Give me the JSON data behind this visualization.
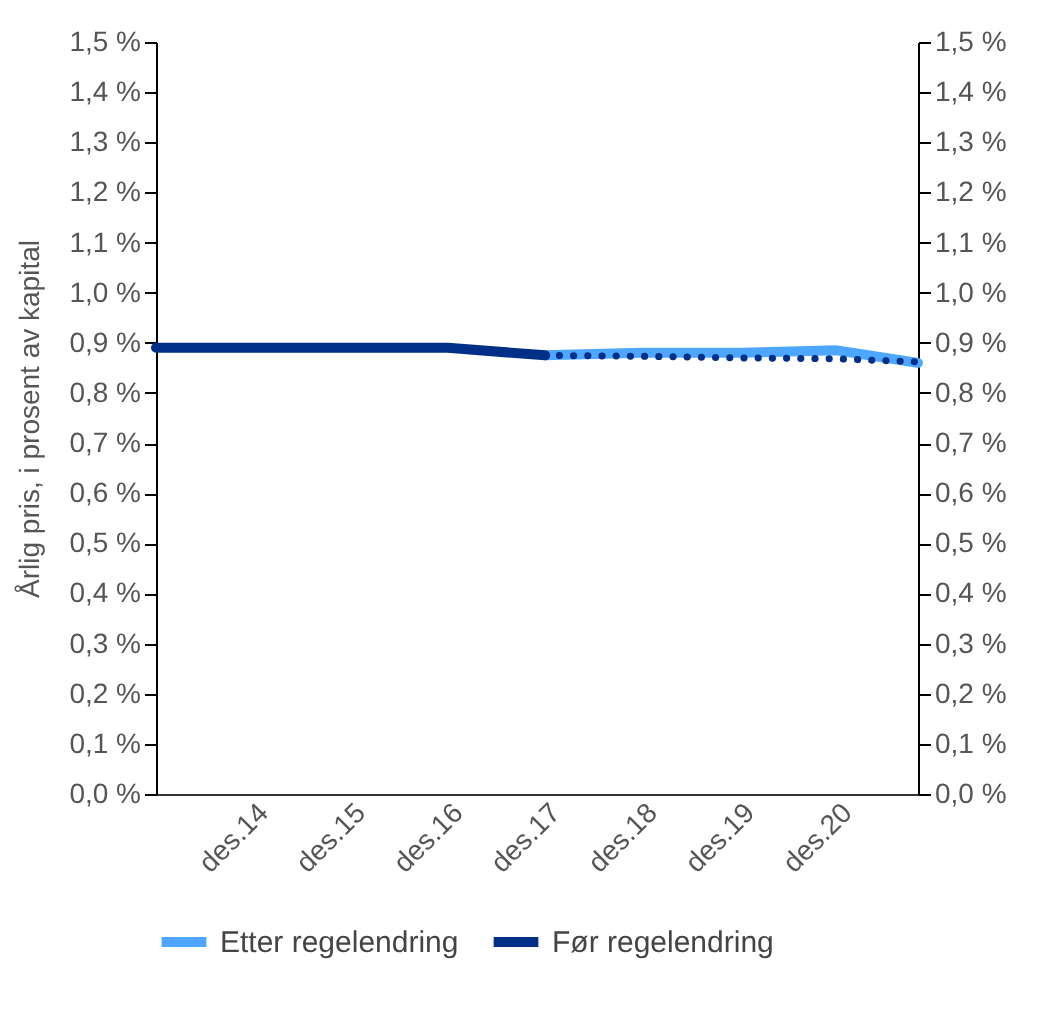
{
  "chart_data": {
    "type": "line",
    "ylabel": "Årlig pris, i prosent av kapital",
    "xlim": [
      "2013-12",
      "2021-10"
    ],
    "xticks": [
      {
        "value": "2014-12",
        "label": "des.14"
      },
      {
        "value": "2015-12",
        "label": "des.15"
      },
      {
        "value": "2016-12",
        "label": "des.16"
      },
      {
        "value": "2017-12",
        "label": "des.17"
      },
      {
        "value": "2018-12",
        "label": "des.18"
      },
      {
        "value": "2019-12",
        "label": "des.19"
      },
      {
        "value": "2020-12",
        "label": "des.20"
      }
    ],
    "ylim": [
      0,
      1.5
    ],
    "yticks": [
      {
        "value": 0,
        "label": "0,0 %"
      },
      {
        "value": 0.1,
        "label": "0,1 %"
      },
      {
        "value": 0.2,
        "label": "0,2 %"
      },
      {
        "value": 0.3,
        "label": "0,3 %"
      },
      {
        "value": 0.4,
        "label": "0,4 %"
      },
      {
        "value": 0.5,
        "label": "0,5 %"
      },
      {
        "value": 0.6,
        "label": "0,6 %"
      },
      {
        "value": 0.7,
        "label": "0,7 %"
      },
      {
        "value": 0.8,
        "label": "0,8 %"
      },
      {
        "value": 0.9,
        "label": "0,9 %"
      },
      {
        "value": 1.0,
        "label": "1,0 %"
      },
      {
        "value": 1.1,
        "label": "1,1 %"
      },
      {
        "value": 1.2,
        "label": "1,2 %"
      },
      {
        "value": 1.3,
        "label": "1,3 %"
      },
      {
        "value": 1.4,
        "label": "1,4 %"
      },
      {
        "value": 1.5,
        "label": "1,5 %"
      }
    ],
    "y2lim": [
      0,
      1.5
    ],
    "y2ticks": [
      {
        "value": 0,
        "label": "0,0 %"
      },
      {
        "value": 0.1,
        "label": "0,1 %"
      },
      {
        "value": 0.2,
        "label": "0,2 %"
      },
      {
        "value": 0.3,
        "label": "0,3 %"
      },
      {
        "value": 0.4,
        "label": "0,4 %"
      },
      {
        "value": 0.5,
        "label": "0,5 %"
      },
      {
        "value": 0.6,
        "label": "0,6 %"
      },
      {
        "value": 0.7,
        "label": "0,7 %"
      },
      {
        "value": 0.8,
        "label": "0,8 %"
      },
      {
        "value": 0.9,
        "label": "0,9 %"
      },
      {
        "value": 1.0,
        "label": "1,0 %"
      },
      {
        "value": 1.1,
        "label": "1,1 %"
      },
      {
        "value": 1.2,
        "label": "1,2 %"
      },
      {
        "value": 1.3,
        "label": "1,3 %"
      },
      {
        "value": 1.4,
        "label": "1,4 %"
      },
      {
        "value": 1.5,
        "label": "1,5 %"
      }
    ],
    "series": [
      {
        "name": "Etter regelendring",
        "color": "#4da6ff",
        "x": [
          "2017-12",
          "2018-12",
          "2019-12",
          "2020-12",
          "2021-10"
        ],
        "values": [
          0.875,
          0.88,
          0.88,
          0.885,
          0.86
        ]
      },
      {
        "name": "Før regelendring",
        "color": "#002f87",
        "x": [
          "2013-12",
          "2014-12",
          "2015-12",
          "2016-12",
          "2017-12"
        ],
        "values": [
          0.89,
          0.89,
          0.89,
          0.89,
          0.875
        ]
      },
      {
        "color": "#002f87",
        "line_style": "dotted",
        "x": [
          "2017-12",
          "2018-12",
          "2019-12",
          "2020-12",
          "2021-10"
        ],
        "values": [
          0.875,
          0.873,
          0.87,
          0.868,
          0.862
        ]
      }
    ],
    "grid": false,
    "legend": "bottom",
    "marker": "none"
  }
}
